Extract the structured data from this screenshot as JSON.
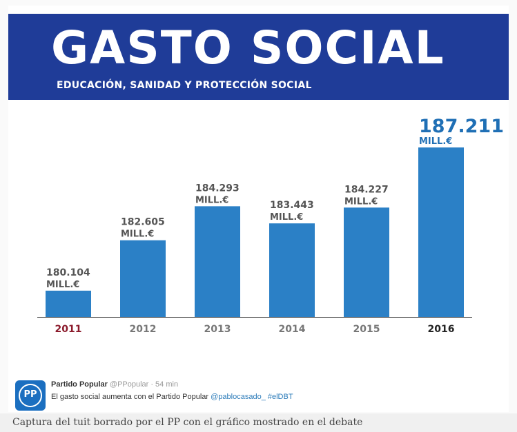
{
  "header": {
    "title": "GASTO SOCIAL",
    "subtitle": "EDUCACIÓN, SANIDAD Y PROTECCIÓN SOCIAL"
  },
  "chart_data": {
    "type": "bar",
    "title": "GASTO SOCIAL",
    "subtitle": "EDUCACIÓN, SANIDAD Y PROTECCIÓN SOCIAL",
    "categories": [
      "2011",
      "2012",
      "2013",
      "2014",
      "2015",
      "2016"
    ],
    "values": [
      180104,
      182605,
      184293,
      183443,
      184227,
      187211
    ],
    "value_labels": [
      "180.104",
      "182.605",
      "184.293",
      "183.443",
      "184.227",
      "187.211"
    ],
    "unit_label": "MILL.€",
    "xlabel": "",
    "ylabel": "",
    "grid": false,
    "legend": "none",
    "colors": {
      "bar": "#2b80c6",
      "value_label": "#555555",
      "highlight_value_label": "#1f6fb5",
      "axis_line": "#444444",
      "first_year": "#8b1a2b",
      "last_year": "#222222",
      "other_years": "#777777"
    }
  },
  "tweet": {
    "logo_text": "PP",
    "account_name": "Partido Popular",
    "handle": "@PPopular",
    "time": "· 54 min",
    "text": "El gasto social aumenta con el Partido Popular",
    "mention": "@pablocasado_",
    "hashtag": "#elDBT"
  },
  "caption": "Captura del tuit borrado por el PP con el gráfico mostrado en el debate"
}
